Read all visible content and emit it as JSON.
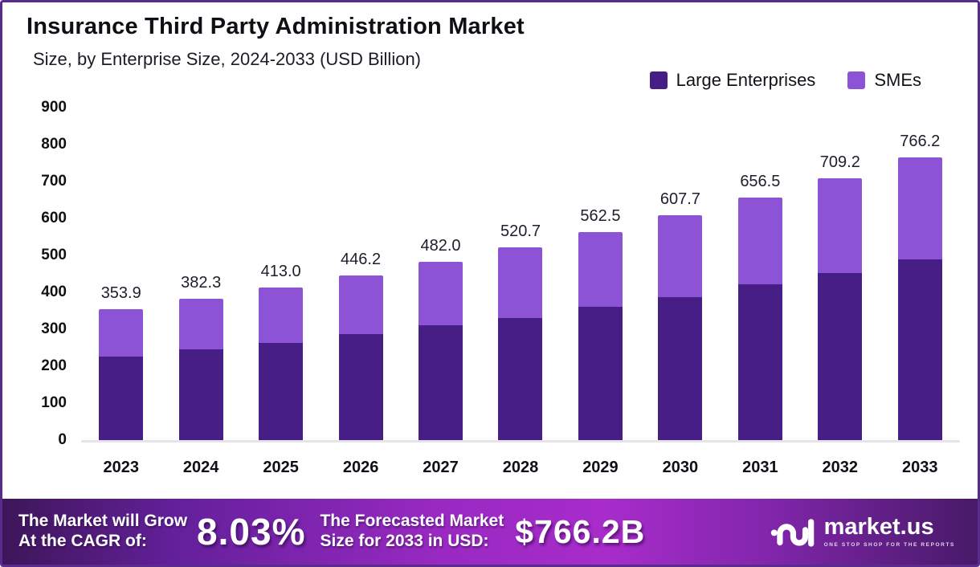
{
  "frame": {
    "border_color": "#5a2b8e",
    "background": "#ffffff"
  },
  "header": {
    "title": "Insurance Third Party Administration Market",
    "subtitle": "Size, by Enterprise Size, 2024-2033 (USD Billion)"
  },
  "chart_data": {
    "type": "bar",
    "stacked": true,
    "title": "Insurance Third Party Administration Market Size, by Enterprise Size, 2024-2033 (USD Billion)",
    "categories": [
      "2023",
      "2024",
      "2025",
      "2026",
      "2027",
      "2028",
      "2029",
      "2030",
      "2031",
      "2032",
      "2033"
    ],
    "series": [
      {
        "name": "Large Enterprises",
        "color": "#471e86",
        "values": [
          226.0,
          245.0,
          264.0,
          286.0,
          310.0,
          330.0,
          360.0,
          388.0,
          421.0,
          452.0,
          489.0
        ]
      },
      {
        "name": "SMEs",
        "color": "#8c53d6",
        "values": [
          127.9,
          137.3,
          149.0,
          160.2,
          172.0,
          190.7,
          202.5,
          219.7,
          235.5,
          257.2,
          277.2
        ]
      }
    ],
    "totals": [
      353.9,
      382.3,
      413.0,
      446.2,
      482.0,
      520.7,
      562.5,
      607.7,
      656.5,
      709.2,
      766.2
    ],
    "bar_labels": [
      "353.9",
      "382.3",
      "413.0",
      "446.2",
      "482.0",
      "520.7",
      "562.5",
      "607.7",
      "656.5",
      "709.2",
      "766.2"
    ],
    "xlabel": "",
    "ylabel": "",
    "ylim": [
      0,
      900
    ],
    "yticks": [
      0,
      100,
      200,
      300,
      400,
      500,
      600,
      700,
      800,
      900
    ],
    "grid": false,
    "legend_position": "top-right"
  },
  "footer": {
    "cagr_label_line1": "The Market will Grow",
    "cagr_label_line2": "At the CAGR of:",
    "cagr_value": "8.03%",
    "forecast_label_line1": "The Forecasted Market",
    "forecast_label_line2": "Size for 2033 in USD:",
    "forecast_value": "$766.2B",
    "logo_text": "market.us",
    "logo_tagline": "ONE STOP SHOP FOR THE REPORTS",
    "gradient_colors": [
      "#3d1659",
      "#a82ccb",
      "#471a68"
    ]
  }
}
